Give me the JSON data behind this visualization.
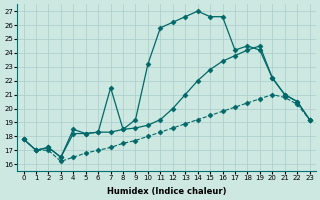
{
  "xlabel": "Humidex (Indice chaleur)",
  "ylabel": "",
  "xlim": [
    -0.5,
    23.5
  ],
  "ylim": [
    15.5,
    27.5
  ],
  "xticks": [
    0,
    1,
    2,
    3,
    4,
    5,
    6,
    7,
    8,
    9,
    10,
    11,
    12,
    13,
    14,
    15,
    16,
    17,
    18,
    19,
    20,
    21,
    22,
    23
  ],
  "yticks": [
    16,
    17,
    18,
    19,
    20,
    21,
    22,
    23,
    24,
    25,
    26,
    27
  ],
  "background_color": "#cce8e0",
  "grid_color": "#aacccc",
  "line_color": "#006868",
  "lines": [
    {
      "x": [
        0,
        1,
        2,
        3,
        4,
        5,
        6,
        7,
        8,
        9,
        10,
        11,
        12,
        13,
        14,
        15,
        16,
        17,
        18,
        19,
        20,
        21,
        22,
        23
      ],
      "y": [
        17.8,
        17.0,
        17.0,
        16.2,
        16.5,
        16.8,
        17.0,
        17.2,
        17.5,
        17.7,
        18.0,
        18.3,
        18.6,
        18.9,
        19.2,
        19.5,
        19.8,
        20.1,
        20.4,
        20.7,
        21.0,
        20.8,
        20.3,
        19.2
      ],
      "marker": "D",
      "markersize": 2.5,
      "linewidth": 0.8,
      "linestyle": "--"
    },
    {
      "x": [
        0,
        1,
        2,
        3,
        4,
        5,
        6,
        7,
        8,
        9,
        10,
        11,
        12,
        13,
        14,
        15,
        16,
        17,
        18,
        19,
        20,
        21,
        22,
        23
      ],
      "y": [
        17.8,
        17.0,
        17.2,
        16.5,
        18.2,
        18.2,
        18.3,
        18.3,
        18.5,
        18.6,
        18.8,
        19.2,
        20.0,
        21.0,
        22.0,
        22.8,
        23.4,
        23.8,
        24.2,
        24.5,
        22.2,
        21.0,
        20.5,
        19.2
      ],
      "marker": "D",
      "markersize": 2.5,
      "linewidth": 0.9,
      "linestyle": "-"
    },
    {
      "x": [
        0,
        1,
        2,
        3,
        4,
        5,
        6,
        7,
        8,
        9,
        10,
        11,
        12,
        13,
        14,
        15,
        16,
        17,
        18,
        19,
        20,
        21,
        22,
        23
      ],
      "y": [
        17.8,
        17.0,
        17.2,
        16.5,
        18.5,
        18.2,
        18.3,
        21.5,
        18.5,
        19.2,
        23.2,
        25.8,
        26.2,
        26.6,
        27.0,
        26.6,
        26.6,
        24.2,
        24.5,
        24.2,
        22.2,
        21.0,
        20.5,
        19.2
      ],
      "marker": "D",
      "markersize": 2.5,
      "linewidth": 0.9,
      "linestyle": "-"
    }
  ]
}
